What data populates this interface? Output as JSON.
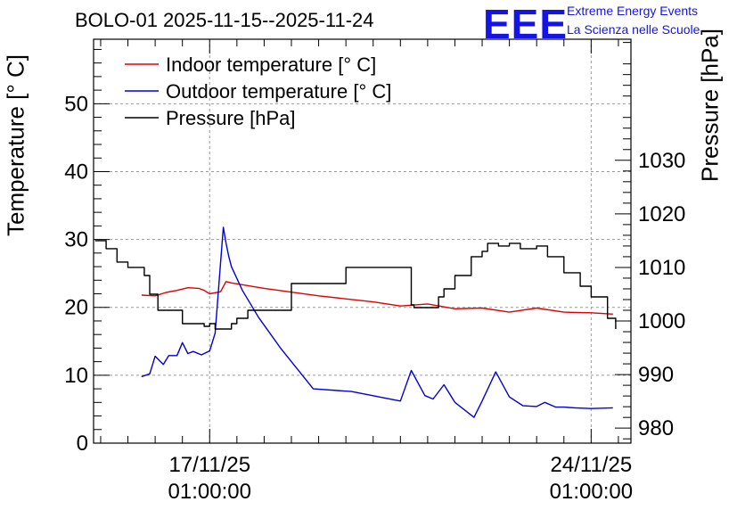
{
  "chart_data": {
    "type": "line",
    "title": "BOLO-01 2025-11-15--2025-11-24",
    "ylabel_left": "Temperature [° C]",
    "ylabel_right": "Pressure [hPa]",
    "x_tick_labels": [
      {
        "date": "17/11/25",
        "time": "01:00:00"
      },
      {
        "date": "24/11/25",
        "time": "01:00:00"
      }
    ],
    "x_day_offset_range": [
      -2.13,
      7.73
    ],
    "x_tick_day_offsets": [
      0,
      7
    ],
    "ylim_left": [
      0,
      59.5
    ],
    "yticks_left": [
      0,
      10,
      20,
      30,
      40,
      50
    ],
    "ylim_right": [
      977.2,
      1052.6
    ],
    "yticks_right": [
      980,
      990,
      1000,
      1010,
      1020,
      1030
    ],
    "grid": true,
    "legend_position": "top-left",
    "series": [
      {
        "name": "Indoor temperature [° C]",
        "color": "#e00000",
        "axis": "left",
        "x": [
          -1.25,
          -1.0,
          -0.8,
          -0.6,
          -0.4,
          -0.2,
          -0.1,
          0.0,
          0.2,
          0.3,
          0.4,
          1.0,
          2.0,
          3.0,
          3.5,
          4.0,
          4.5,
          5.0,
          5.5,
          6.0,
          6.5,
          7.0,
          7.4
        ],
        "values": [
          21.8,
          21.7,
          22.2,
          22.5,
          22.9,
          22.8,
          22.5,
          22.0,
          22.3,
          23.8,
          23.6,
          22.8,
          21.7,
          20.8,
          20.2,
          20.5,
          19.8,
          19.9,
          19.3,
          19.9,
          19.3,
          19.2,
          19.0
        ]
      },
      {
        "name": "Outdoor temperature [° C]",
        "color": "#0000d8",
        "axis": "left",
        "x": [
          -1.25,
          -1.1,
          -1.0,
          -0.85,
          -0.75,
          -0.6,
          -0.5,
          -0.4,
          -0.3,
          -0.15,
          0.0,
          0.1,
          0.25,
          0.3,
          0.35,
          0.4,
          0.6,
          0.9,
          1.3,
          1.9,
          2.6,
          3.5,
          3.7,
          3.95,
          4.1,
          4.3,
          4.5,
          4.85,
          5.0,
          5.25,
          5.5,
          5.75,
          6.0,
          6.15,
          6.35,
          6.5,
          6.7,
          7.0,
          7.4
        ],
        "values": [
          9.8,
          10.2,
          12.8,
          11.6,
          12.9,
          12.9,
          14.8,
          13.2,
          13.5,
          13.0,
          13.6,
          16.2,
          31.8,
          29.5,
          27.5,
          26.0,
          22.5,
          18.5,
          14.0,
          8.0,
          7.6,
          6.2,
          10.7,
          7.0,
          6.5,
          8.6,
          6.0,
          3.8,
          6.2,
          10.5,
          6.8,
          5.5,
          5.4,
          6.0,
          5.3,
          5.3,
          5.2,
          5.1,
          5.2
        ]
      },
      {
        "name": "Pressure [hPa]",
        "color": "#000000",
        "axis": "right",
        "x": [
          -2.1,
          -1.9,
          -1.7,
          -1.5,
          -1.2,
          -1.1,
          -0.95,
          -0.5,
          -0.1,
          0.0,
          0.1,
          0.4,
          0.5,
          0.7,
          1.5,
          2.5,
          3.7,
          3.75,
          4.0,
          4.2,
          4.3,
          4.5,
          4.8,
          5.0,
          5.1,
          5.3,
          5.5,
          5.7,
          6.0,
          6.2,
          6.5,
          6.8,
          7.0,
          7.3,
          7.45
        ],
        "values": [
          1015.0,
          1013.5,
          1011.0,
          1010.0,
          1008.5,
          1005.0,
          1002.0,
          999.5,
          999.0,
          999.5,
          998.5,
          999.5,
          1000.5,
          1002.0,
          1007.0,
          1010.0,
          1003.0,
          1002.5,
          1002.5,
          1004.5,
          1006.0,
          1008.5,
          1012.0,
          1013.0,
          1014.5,
          1014.0,
          1014.5,
          1013.5,
          1014.0,
          1012.0,
          1009.0,
          1006.5,
          1004.5,
          1000.5,
          998.5
        ]
      }
    ]
  }
}
